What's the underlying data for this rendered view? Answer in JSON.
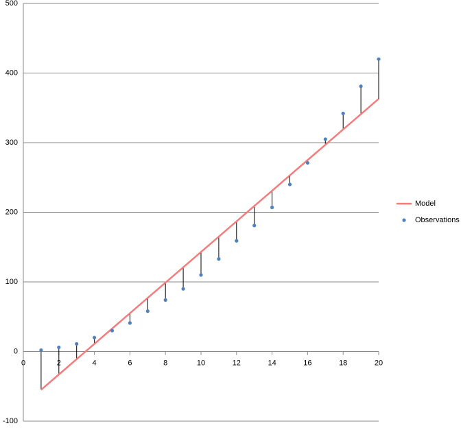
{
  "chart_data": {
    "type": "scatter",
    "x": [
      1,
      2,
      3,
      4,
      5,
      6,
      7,
      8,
      9,
      10,
      11,
      12,
      13,
      14,
      15,
      16,
      17,
      18,
      19,
      20
    ],
    "series": [
      {
        "name": "Model",
        "color": "#f47c7c",
        "style": "line",
        "values": [
          -55,
          -33,
          -11,
          11,
          33,
          55,
          77,
          99,
          121,
          143,
          165,
          187,
          209,
          231,
          253,
          275,
          297,
          319,
          341,
          363
        ]
      },
      {
        "name": "Observations",
        "color": "#4f81bd",
        "style": "markers",
        "values": [
          2,
          6,
          11,
          20,
          30,
          41,
          58,
          74,
          90,
          110,
          133,
          159,
          181,
          207,
          240,
          271,
          305,
          342,
          381,
          420
        ]
      }
    ],
    "residual_lines": true,
    "residual_color": "#000000",
    "xlim": [
      0,
      20
    ],
    "xticks": [
      0,
      2,
      4,
      6,
      8,
      10,
      12,
      14,
      16,
      18,
      20
    ],
    "ylim": [
      -100,
      500
    ],
    "yticks": [
      -100,
      0,
      100,
      200,
      300,
      400,
      500
    ],
    "grid": true,
    "legend": "right"
  }
}
